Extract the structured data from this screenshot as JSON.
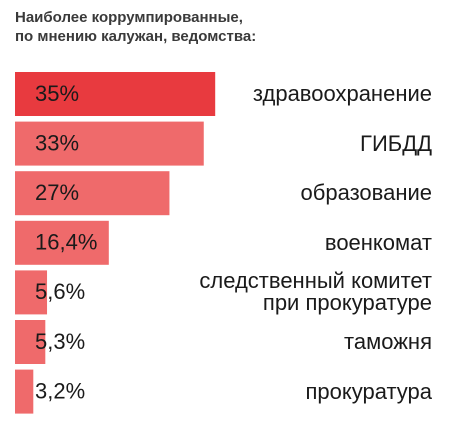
{
  "chart_data": {
    "type": "bar",
    "orientation": "horizontal",
    "title": [
      "Наиболее коррумпированные,",
      "по мнению калужан, ведомства:"
    ],
    "categories": [
      "здравоохранение",
      "ГИБДД",
      "образование",
      "военкомат",
      "следственный комитет\nпри прокуратуре",
      "таможня",
      "прокуратура"
    ],
    "values": [
      35,
      33,
      27,
      16.4,
      5.6,
      5.3,
      3.2
    ],
    "value_labels": [
      "35%",
      "33%",
      "27%",
      "16,4%",
      "5,6%",
      "5,3%",
      "3,2%"
    ],
    "colors": [
      "#e83a3f",
      "#ef6a6b",
      "#ef6a6b",
      "#ef6a6b",
      "#ef6a6b",
      "#ef6a6b",
      "#ef6a6b"
    ]
  }
}
